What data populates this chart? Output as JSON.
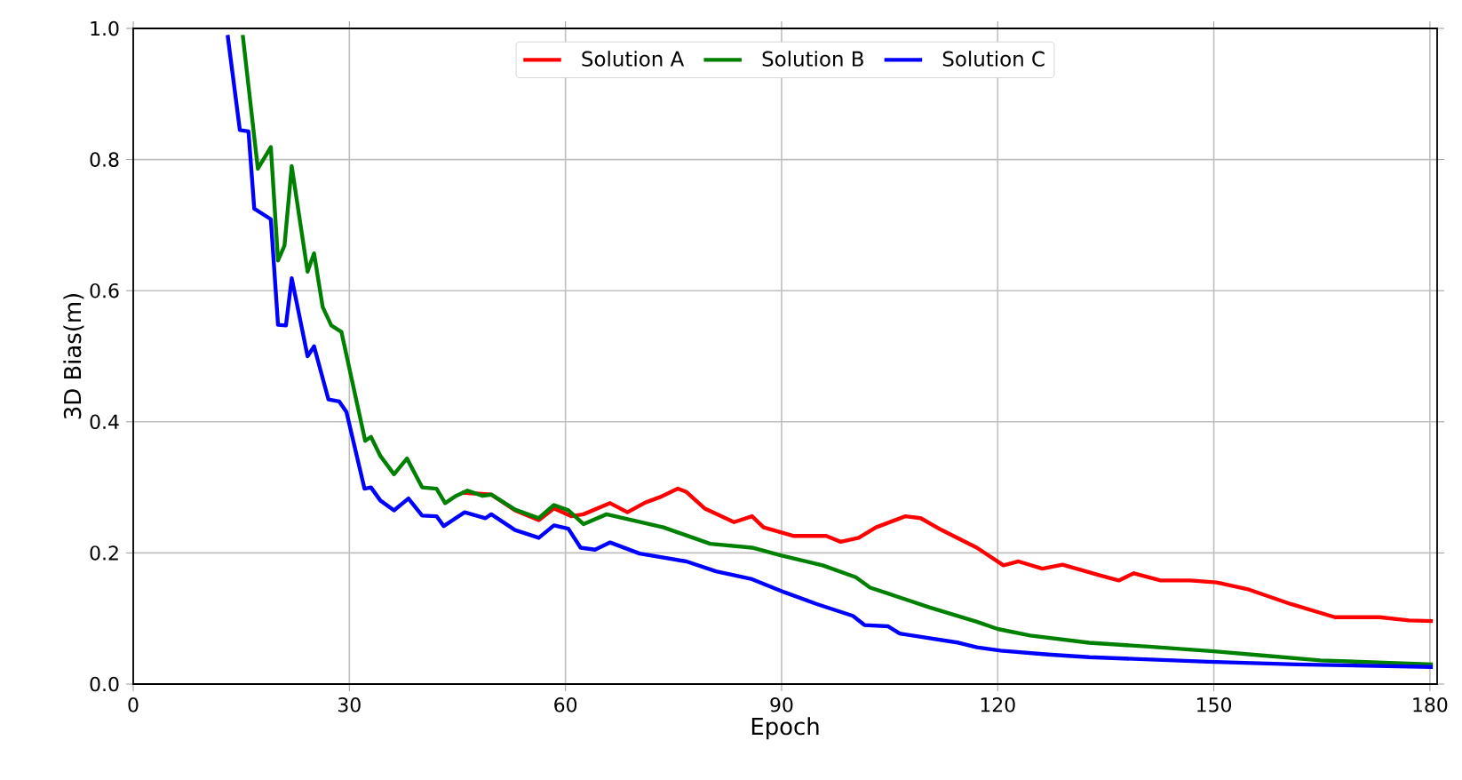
{
  "chart_data": {
    "type": "line",
    "xlabel": "Epoch",
    "ylabel": "3D Bias(m)",
    "xlim": [
      0,
      181
    ],
    "ylim": [
      0,
      1.0
    ],
    "xticks": [
      0,
      30,
      60,
      90,
      120,
      150,
      180
    ],
    "yticks": [
      {
        "value": 0,
        "label": "0.0"
      },
      0.2,
      0.4,
      0.6,
      0.8,
      {
        "value": 1,
        "label": "1.0"
      }
    ],
    "grid": true,
    "legend": "top",
    "marker": "none",
    "line_style": "solid",
    "series": [
      {
        "name": "Solution A",
        "color": "#ff0000",
        "x": [
          45.6,
          49.7,
          53,
          56.3,
          58.4,
          60.8,
          62.5,
          66.2,
          68.6,
          71.1,
          73.1,
          75.6,
          76.8,
          79.3,
          83.4,
          85.9,
          87.5,
          91.6,
          96.2,
          98.2,
          100.7,
          103.1,
          107.2,
          109.3,
          112.2,
          117.1,
          120.8,
          122.9,
          126.2,
          129,
          134.4,
          136.8,
          138.9,
          142.6,
          146.7,
          150.4,
          154.9,
          160.7,
          166.8,
          173,
          177.1,
          180.4
        ],
        "values": [
          0.292,
          0.289,
          0.265,
          0.25,
          0.268,
          0.256,
          0.259,
          0.276,
          0.262,
          0.277,
          0.285,
          0.298,
          0.293,
          0.268,
          0.247,
          0.256,
          0.239,
          0.226,
          0.226,
          0.217,
          0.223,
          0.239,
          0.256,
          0.253,
          0.235,
          0.208,
          0.181,
          0.187,
          0.176,
          0.182,
          0.165,
          0.158,
          0.169,
          0.158,
          0.158,
          0.155,
          0.144,
          0.122,
          0.102,
          0.102,
          0.097,
          0.096
        ]
      },
      {
        "name": "Solution B",
        "color": "#008000",
        "x": [
          15.2,
          17.3,
          19.1,
          20.1,
          21,
          22,
          24.2,
          25.1,
          26.3,
          27.5,
          28.9,
          32.2,
          33,
          34.3,
          36.2,
          38,
          40.1,
          42.1,
          43.3,
          44.8,
          46.4,
          48.5,
          49.7,
          53,
          56.3,
          58.4,
          60.4,
          62.5,
          65.7,
          73.6,
          80.1,
          85.9,
          90,
          95.7,
          100.3,
          102.3,
          104.8,
          110.5,
          117.1,
          120,
          124.5,
          132.7,
          141,
          150,
          157.4,
          164.8,
          180.4
        ],
        "values": [
          0.99,
          0.786,
          0.819,
          0.646,
          0.669,
          0.79,
          0.629,
          0.657,
          0.575,
          0.547,
          0.537,
          0.371,
          0.377,
          0.348,
          0.32,
          0.344,
          0.3,
          0.298,
          0.276,
          0.287,
          0.295,
          0.287,
          0.289,
          0.266,
          0.253,
          0.273,
          0.265,
          0.244,
          0.259,
          0.239,
          0.214,
          0.208,
          0.196,
          0.181,
          0.163,
          0.147,
          0.138,
          0.117,
          0.095,
          0.084,
          0.074,
          0.063,
          0.057,
          0.05,
          0.043,
          0.036,
          0.03
        ]
      },
      {
        "name": "Solution C",
        "color": "#0000ff",
        "x": [
          13.1,
          14.8,
          16,
          16.8,
          19.1,
          20.1,
          21.2,
          22,
          24.2,
          25.1,
          27.1,
          28.6,
          29.6,
          32.1,
          33,
          34.3,
          36.2,
          38.2,
          40.1,
          42.1,
          43.1,
          46,
          48.9,
          49.7,
          53,
          56.3,
          58.4,
          60.4,
          62.1,
          64.1,
          66.2,
          70.3,
          76.8,
          80.9,
          85.9,
          90.4,
          94.9,
          99.9,
          101.5,
          104.8,
          106.4,
          114.6,
          117.1,
          120.4,
          127,
          132.7,
          149.2,
          161.5,
          180.4
        ],
        "values": [
          0.99,
          0.845,
          0.843,
          0.725,
          0.709,
          0.548,
          0.547,
          0.619,
          0.5,
          0.515,
          0.434,
          0.431,
          0.415,
          0.298,
          0.3,
          0.28,
          0.265,
          0.283,
          0.257,
          0.256,
          0.241,
          0.262,
          0.253,
          0.259,
          0.235,
          0.223,
          0.242,
          0.237,
          0.208,
          0.205,
          0.216,
          0.199,
          0.187,
          0.172,
          0.16,
          0.14,
          0.122,
          0.104,
          0.09,
          0.088,
          0.077,
          0.063,
          0.056,
          0.051,
          0.045,
          0.041,
          0.034,
          0.03,
          0.026
        ]
      }
    ]
  }
}
